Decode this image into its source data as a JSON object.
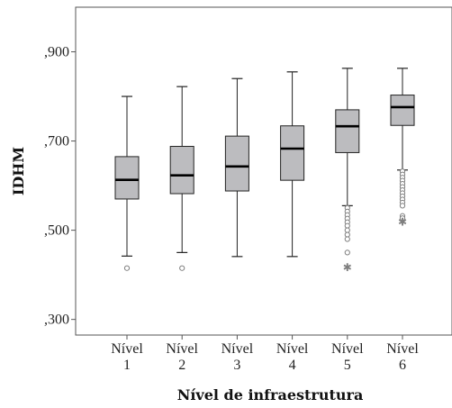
{
  "chart_data": {
    "type": "boxplot",
    "xlabel": "Nível de infraestrutura",
    "ylabel": "IDHM",
    "ylim": [
      0.265,
      1.0
    ],
    "yticks": [
      {
        "value": 0.3,
        "label": ",300"
      },
      {
        "value": 0.5,
        "label": ",500"
      },
      {
        "value": 0.7,
        "label": ",700"
      },
      {
        "value": 0.9,
        "label": ",900"
      }
    ],
    "grid": false,
    "categories": [
      {
        "line1": "Nível",
        "line2": "1"
      },
      {
        "line1": "Nível",
        "line2": "2"
      },
      {
        "line1": "Nível",
        "line2": "3"
      },
      {
        "line1": "Nível",
        "line2": "4"
      },
      {
        "line1": "Nível",
        "line2": "5"
      },
      {
        "line1": "Nível",
        "line2": "6"
      }
    ],
    "boxes": [
      {
        "whisker_low": 0.442,
        "q1": 0.57,
        "median": 0.613,
        "q3": 0.665,
        "whisker_high": 0.8,
        "outliers_circle": [
          0.415
        ],
        "outliers_star": []
      },
      {
        "whisker_low": 0.45,
        "q1": 0.582,
        "median": 0.623,
        "q3": 0.688,
        "whisker_high": 0.822,
        "outliers_circle": [
          0.415
        ],
        "outliers_star": []
      },
      {
        "whisker_low": 0.441,
        "q1": 0.588,
        "median": 0.643,
        "q3": 0.711,
        "whisker_high": 0.84,
        "outliers_circle": [],
        "outliers_star": []
      },
      {
        "whisker_low": 0.441,
        "q1": 0.612,
        "median": 0.683,
        "q3": 0.734,
        "whisker_high": 0.855,
        "outliers_circle": [],
        "outliers_star": []
      },
      {
        "whisker_low": 0.555,
        "q1": 0.674,
        "median": 0.733,
        "q3": 0.77,
        "whisker_high": 0.863,
        "outliers_circle": [
          0.55,
          0.542,
          0.534,
          0.526,
          0.518,
          0.51,
          0.5,
          0.49,
          0.48,
          0.45
        ],
        "outliers_star": [
          0.418
        ]
      },
      {
        "whisker_low": 0.635,
        "q1": 0.735,
        "median": 0.776,
        "q3": 0.803,
        "whisker_high": 0.863,
        "outliers_circle": [
          0.632,
          0.625,
          0.618,
          0.611,
          0.604,
          0.597,
          0.59,
          0.583,
          0.576,
          0.569,
          0.562,
          0.555,
          0.532,
          0.527
        ],
        "outliers_star": [
          0.52
        ]
      }
    ],
    "colors": {
      "box_fill": "#bcbcbf",
      "box_stroke": "#222222",
      "median": "#000000",
      "outlier": "#7f7f7f"
    }
  }
}
